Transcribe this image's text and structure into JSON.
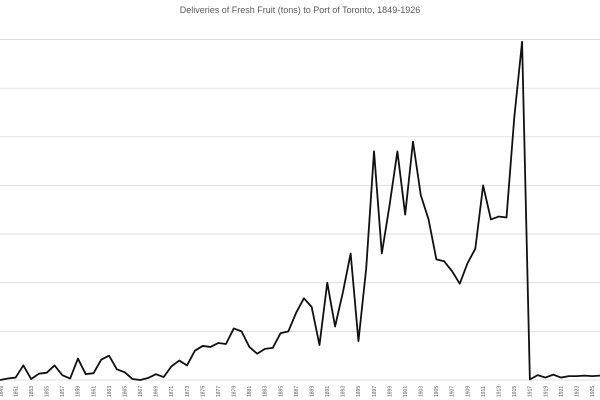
{
  "chart_data": {
    "type": "line",
    "title": "Deliveries of Fresh Fruit (tons) to Port of Toronto, 1849-1926",
    "xlabel": "",
    "ylabel": "",
    "grid": true,
    "x": [
      1849,
      1850,
      1851,
      1852,
      1853,
      1854,
      1855,
      1856,
      1857,
      1858,
      1859,
      1860,
      1861,
      1862,
      1863,
      1864,
      1865,
      1866,
      1867,
      1868,
      1869,
      1870,
      1871,
      1872,
      1873,
      1874,
      1875,
      1876,
      1877,
      1878,
      1879,
      1880,
      1881,
      1882,
      1883,
      1884,
      1885,
      1886,
      1887,
      1888,
      1889,
      1890,
      1891,
      1892,
      1893,
      1894,
      1895,
      1896,
      1897,
      1898,
      1899,
      1900,
      1901,
      1902,
      1903,
      1904,
      1905,
      1906,
      1907,
      1908,
      1909,
      1910,
      1911,
      1912,
      1913,
      1914,
      1915,
      1916,
      1917,
      1918,
      1919,
      1920,
      1921,
      1922,
      1923,
      1924,
      1925,
      1926
    ],
    "tick_labels": [
      "1849",
      "1851",
      "1853",
      "1855",
      "1857",
      "1859",
      "1861",
      "1863",
      "1865",
      "1867",
      "1869",
      "1871",
      "1873",
      "1875",
      "1877",
      "1879",
      "1881",
      "1883",
      "1885",
      "1887",
      "1889",
      "1891",
      "1893",
      "1895",
      "1897",
      "1899",
      "1901",
      "1903",
      "1905",
      "1907",
      "1909",
      "1911",
      "1913",
      "1915",
      "1917",
      "1919",
      "1921",
      "1923",
      "1925"
    ],
    "series": [
      {
        "values": [
          0.0,
          0.3,
          0.5,
          3.0,
          0.2,
          1.3,
          1.5,
          3.0,
          1.0,
          0.3,
          4.4,
          1.2,
          1.4,
          4.2,
          5.0,
          2.2,
          1.6,
          0.2,
          0.0,
          0.4,
          1.2,
          0.6,
          2.8,
          4.0,
          3.0,
          6.0,
          7.0,
          6.8,
          7.6,
          7.4,
          10.6,
          10.0,
          6.8,
          5.4,
          6.4,
          6.6,
          9.6,
          10.0,
          13.8,
          16.8,
          15.0,
          7.2,
          20.0,
          11.0,
          18.0,
          26.0,
          8.0,
          23.0,
          47.0,
          26.0,
          36.0,
          47.0,
          34.0,
          49.0,
          38.0,
          33.0,
          24.8,
          24.4,
          22.4,
          19.8,
          24.0,
          27.0,
          40.0,
          33.0,
          33.6,
          33.4,
          54.0,
          69.5,
          0.1,
          1.0,
          0.5,
          1.1,
          0.5,
          0.8,
          0.8,
          0.9,
          0.8,
          0.9
        ]
      }
    ],
    "ylim": [
      0,
      74
    ]
  }
}
